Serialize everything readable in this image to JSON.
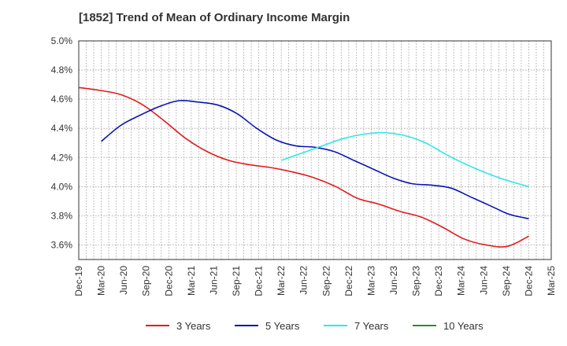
{
  "chart_data": {
    "type": "line",
    "title": "[1852]  Trend of Mean of Ordinary Income Margin",
    "xlabel": "",
    "ylabel": "",
    "x_ticks": [
      "Dec-19",
      "Mar-20",
      "Jun-20",
      "Sep-20",
      "Dec-20",
      "Mar-21",
      "Jun-21",
      "Sep-21",
      "Dec-21",
      "Mar-22",
      "Jun-22",
      "Sep-22",
      "Dec-22",
      "Mar-23",
      "Jun-23",
      "Sep-23",
      "Dec-23",
      "Mar-24",
      "Jun-24",
      "Sep-24",
      "Dec-24",
      "Mar-25"
    ],
    "y_ticks": [
      "3.6%",
      "3.8%",
      "4.0%",
      "4.2%",
      "4.4%",
      "4.6%",
      "4.8%",
      "5.0%"
    ],
    "ylim": [
      3.5,
      5.0
    ],
    "grid": true,
    "legend_position": "bottom",
    "series": [
      {
        "name": "3 Years",
        "color": "#e31a1c",
        "points": [
          [
            0,
            4.68
          ],
          [
            1,
            4.66
          ],
          [
            2,
            4.63
          ],
          [
            3,
            4.56
          ],
          [
            4,
            4.45
          ],
          [
            5,
            4.33
          ],
          [
            6,
            4.24
          ],
          [
            7,
            4.18
          ],
          [
            8,
            4.15
          ],
          [
            9,
            4.13
          ],
          [
            10,
            4.1
          ],
          [
            11,
            4.06
          ],
          [
            12,
            4.0
          ],
          [
            13,
            3.92
          ],
          [
            14,
            3.88
          ],
          [
            15,
            3.83
          ],
          [
            16,
            3.79
          ],
          [
            17,
            3.72
          ],
          [
            18,
            3.64
          ],
          [
            19,
            3.6
          ],
          [
            20,
            3.59
          ],
          [
            21,
            3.66
          ]
        ]
      },
      {
        "name": "5 Years",
        "color": "#0a14b4",
        "points": [
          [
            1,
            4.31
          ],
          [
            2,
            4.42
          ],
          [
            3,
            4.49
          ],
          [
            4,
            4.55
          ],
          [
            5,
            4.59
          ],
          [
            6,
            4.58
          ],
          [
            7,
            4.56
          ],
          [
            8,
            4.5
          ],
          [
            9,
            4.4
          ],
          [
            10,
            4.32
          ],
          [
            11,
            4.28
          ],
          [
            12,
            4.27
          ],
          [
            13,
            4.24
          ],
          [
            14,
            4.18
          ],
          [
            15,
            4.12
          ],
          [
            16,
            4.06
          ],
          [
            17,
            4.02
          ],
          [
            18,
            4.01
          ],
          [
            19,
            3.99
          ],
          [
            20,
            3.93
          ],
          [
            21,
            3.87
          ],
          [
            22,
            3.81
          ],
          [
            23,
            3.78
          ]
        ]
      },
      {
        "name": "7 Years",
        "color": "#33e6e6",
        "points": [
          [
            9,
            4.18
          ],
          [
            10,
            4.23
          ],
          [
            11,
            4.28
          ],
          [
            12,
            4.33
          ],
          [
            13,
            4.36
          ],
          [
            14,
            4.37
          ],
          [
            15,
            4.35
          ],
          [
            16,
            4.3
          ],
          [
            17,
            4.22
          ],
          [
            18,
            4.15
          ],
          [
            19,
            4.09
          ],
          [
            20,
            4.04
          ],
          [
            21,
            4.0
          ]
        ]
      },
      {
        "name": "10 Years",
        "color": "#2e8b2e",
        "points": []
      }
    ]
  }
}
